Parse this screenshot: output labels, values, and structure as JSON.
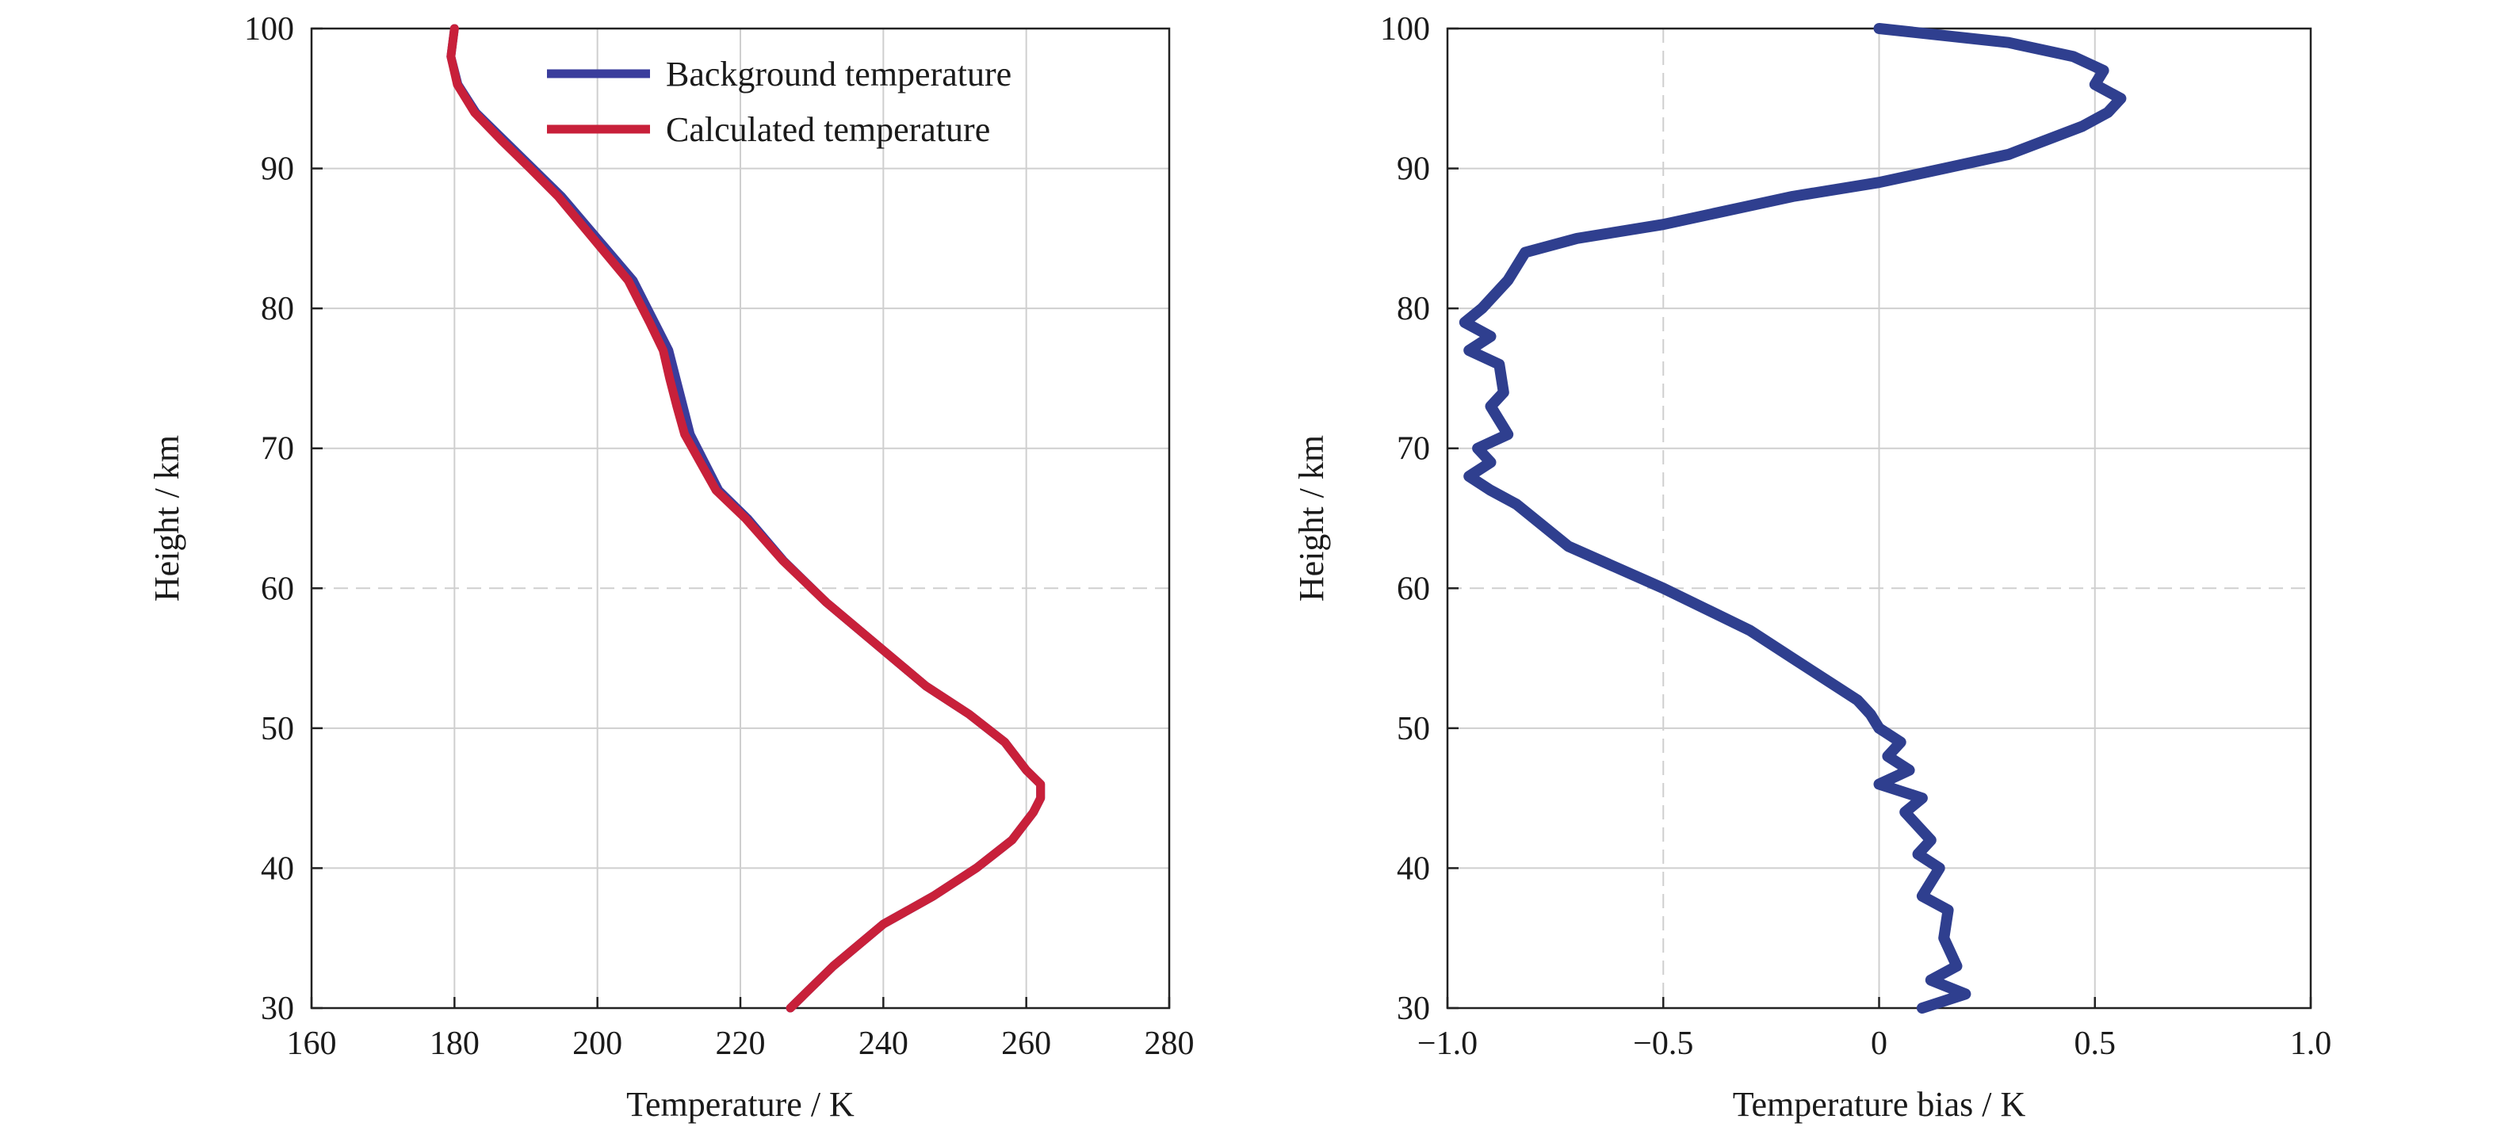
{
  "chart_data": [
    {
      "type": "line",
      "xlabel": "Temperature / K",
      "ylabel": "Height / km",
      "xlim": [
        160,
        280
      ],
      "ylim": [
        30,
        100
      ],
      "xticks": [
        160,
        180,
        200,
        220,
        240,
        260,
        280
      ],
      "yticks": [
        30,
        40,
        50,
        60,
        70,
        80,
        90,
        100
      ],
      "grid": true,
      "legend_position": "top-right",
      "series": [
        {
          "name": "Background temperature",
          "color": "#3a3d9c",
          "x": [
            180,
            179.5,
            180.5,
            183,
            187,
            191,
            195,
            200,
            205,
            208,
            210,
            211,
            212,
            213,
            214,
            215,
            217,
            221,
            226,
            232,
            239,
            246,
            252,
            257,
            260,
            262,
            262,
            261,
            258,
            253,
            247,
            240,
            233,
            227
          ],
          "y": [
            100,
            98,
            96,
            94,
            92,
            90,
            88,
            85,
            82,
            79,
            77,
            75,
            73,
            71,
            70,
            69,
            67,
            65,
            62,
            59,
            56,
            53,
            51,
            49,
            47,
            46,
            45,
            44,
            42,
            40,
            38,
            36,
            33,
            30
          ]
        },
        {
          "name": "Calculated temperature",
          "color": "#c8203a",
          "x": [
            180,
            179.5,
            180.4,
            182.8,
            186.6,
            190.6,
            194.5,
            199.4,
            204.3,
            207.3,
            209.2,
            210.1,
            211.1,
            212.2,
            213.3,
            214.4,
            216.6,
            220.7,
            225.9,
            232.0,
            239.0,
            246.0,
            252.0,
            257.0,
            260.0,
            262.0,
            262.0,
            261.0,
            258.0,
            253.0,
            247.0,
            240.0,
            233.0,
            227.0
          ],
          "y": [
            100,
            98,
            96,
            94,
            92,
            90,
            88,
            85,
            82,
            79,
            77,
            75,
            73,
            71,
            70,
            69,
            67,
            65,
            62,
            59,
            56,
            53,
            51,
            49,
            47,
            46,
            45,
            44,
            42,
            40,
            38,
            36,
            33,
            30
          ]
        }
      ]
    },
    {
      "type": "line",
      "xlabel": "Temperature bias / K",
      "ylabel": "Height / km",
      "xlim": [
        -1.0,
        1.0
      ],
      "ylim": [
        30,
        100
      ],
      "xticks": [
        -1.0,
        -0.5,
        0,
        0.5,
        1.0
      ],
      "xtick_labels": [
        "−1.0",
        "−0.5",
        "0",
        "0.5",
        "1.0"
      ],
      "yticks": [
        30,
        40,
        50,
        60,
        70,
        80,
        90,
        100
      ],
      "grid": true,
      "series": [
        {
          "color": "#2f3f8f",
          "x": [
            0.0,
            0.3,
            0.45,
            0.52,
            0.5,
            0.56,
            0.53,
            0.47,
            0.3,
            0.15,
            0.0,
            -0.2,
            -0.5,
            -0.7,
            -0.82,
            -0.86,
            -0.92,
            -0.96,
            -0.9,
            -0.95,
            -0.88,
            -0.87,
            -0.9,
            -0.86,
            -0.93,
            -0.9,
            -0.95,
            -0.9,
            -0.84,
            -0.72,
            -0.5,
            -0.3,
            -0.2,
            -0.1,
            -0.05,
            -0.02,
            0.0,
            0.05,
            0.02,
            0.07,
            0.0,
            0.1,
            0.06,
            0.12,
            0.09,
            0.14,
            0.1,
            0.16,
            0.15,
            0.18,
            0.12,
            0.2,
            0.1
          ],
          "y": [
            100,
            99,
            98,
            97,
            96,
            95,
            94,
            93,
            91,
            90,
            89,
            88,
            86,
            85,
            84,
            82,
            80,
            79,
            78,
            77,
            76,
            74,
            73,
            71,
            70,
            69,
            68,
            67,
            66,
            63,
            60,
            57,
            55,
            53,
            52,
            51,
            50,
            49,
            48,
            47,
            46,
            45,
            44,
            42,
            41,
            40,
            38,
            37,
            35,
            33,
            32,
            31,
            30
          ]
        }
      ]
    }
  ]
}
